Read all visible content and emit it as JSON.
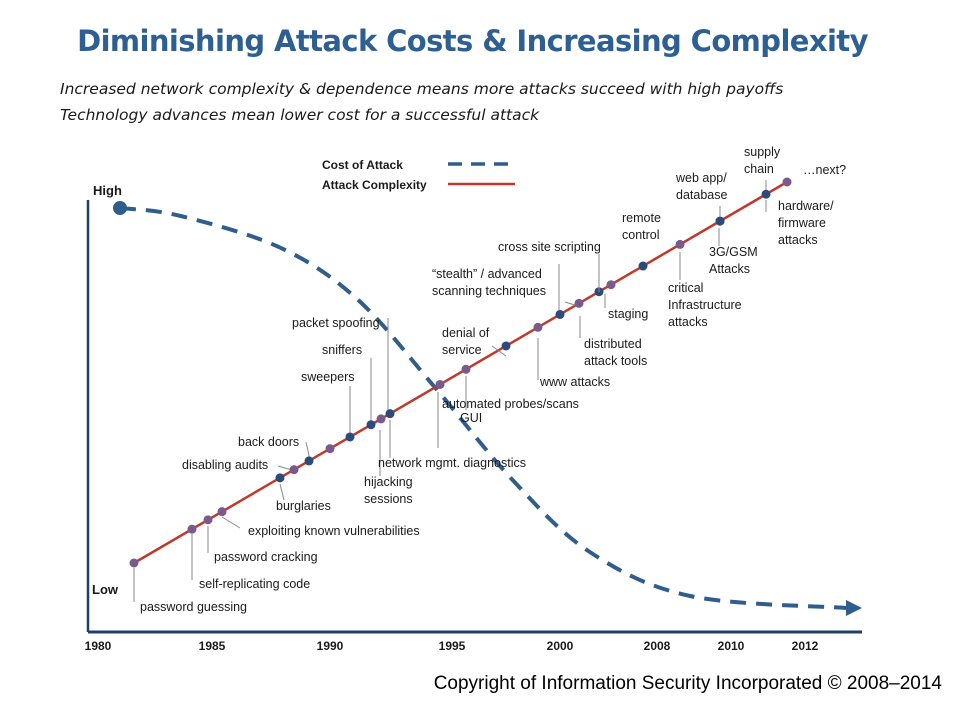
{
  "page": {
    "title": "Diminishing Attack Costs & Increasing Complexity",
    "subtitle_lines": [
      "Increased network complexity & dependence means more attacks succeed with high  payoffs",
      "Technology advances mean lower cost for a successful attack"
    ],
    "copyright": "Copyright of Information Security Incorporated © 2008–2014"
  },
  "colors": {
    "cost_line": "#2f5d8c",
    "complexity_line": "#c0392b",
    "dot_blue": "#2c4a7a",
    "dot_purple": "#7a5a8c",
    "axis": "#1f3f66",
    "title": "#2e5f93"
  },
  "chart_data": {
    "type": "line",
    "x_axis": {
      "tick_labels": [
        "1980",
        "1985",
        "1990",
        "1995",
        "2000",
        "2008",
        "2010",
        "2012"
      ]
    },
    "y_axis": {
      "tick_labels": [
        "High",
        "Low"
      ]
    },
    "legend": {
      "placement": "top",
      "entries": [
        {
          "name": "Cost of Attack",
          "style": "dashed",
          "color": "#2f5d8c"
        },
        {
          "name": "Attack Complexity",
          "style": "solid",
          "color": "#c0392b"
        }
      ]
    },
    "series": [
      {
        "name": "Cost of Attack",
        "style": "dashed",
        "description_points": [
          {
            "x": 0.0,
            "y": 1.0
          },
          {
            "x": 0.12,
            "y": 0.98
          },
          {
            "x": 0.25,
            "y": 0.9
          },
          {
            "x": 0.35,
            "y": 0.77
          },
          {
            "x": 0.45,
            "y": 0.55
          },
          {
            "x": 0.55,
            "y": 0.32
          },
          {
            "x": 0.65,
            "y": 0.14
          },
          {
            "x": 0.78,
            "y": 0.03
          },
          {
            "x": 1.0,
            "y": 0.0
          }
        ]
      },
      {
        "name": "Attack Complexity",
        "style": "solid",
        "description_points": [
          {
            "x": 0.02,
            "y": 0.07
          },
          {
            "x": 1.0,
            "y": 1.0
          }
        ]
      }
    ],
    "annotations": [
      {
        "text": [
          "password guessing"
        ],
        "t": 0.0,
        "color": "purple"
      },
      {
        "text": [
          "self-replicating code"
        ],
        "t": 0.09,
        "color": "purple"
      },
      {
        "text": [
          "password cracking"
        ],
        "t": 0.115,
        "color": "purple"
      },
      {
        "text": [
          "exploiting known vulnerabilities"
        ],
        "t": 0.14,
        "color": "purple"
      },
      {
        "text": [
          "burglaries"
        ],
        "t": 0.225,
        "color": "blue"
      },
      {
        "text": [
          "disabling audits"
        ],
        "t": 0.25,
        "color": "purple"
      },
      {
        "text": [
          "back doors"
        ],
        "t": 0.275,
        "color": "blue"
      },
      {
        "text": [
          "sweepers"
        ],
        "t": 0.31,
        "color": "purple"
      },
      {
        "text": [
          "sniffers"
        ],
        "t": 0.345,
        "color": "blue"
      },
      {
        "text": [
          "hijacking",
          "sessions"
        ],
        "t": 0.375,
        "color": "blue"
      },
      {
        "text": [
          "packet spoofing"
        ],
        "t": 0.395,
        "color": "purple"
      },
      {
        "text": [
          "network mgmt. diagnostics"
        ],
        "t": 0.41,
        "color": "blue"
      },
      {
        "text": [
          "automated probes/scans"
        ],
        "t": 0.49,
        "color": "purple"
      },
      {
        "text": [
          "GUI"
        ],
        "t": 0.525,
        "color": "purple"
      },
      {
        "text": [
          "denial of",
          "service"
        ],
        "t": 0.6,
        "color": "blue"
      },
      {
        "text": [
          "www attacks"
        ],
        "t": 0.645,
        "color": "purple"
      },
      {
        "text": [
          "cross site scripting"
        ],
        "t": 0.67,
        "color": "blue"
      },
      {
        "text": [
          "“stealth” / advanced",
          "scanning techniques"
        ],
        "t": 0.695,
        "color": "purple"
      },
      {
        "text": [
          "distributed",
          "attack tools"
        ],
        "t": 0.73,
        "color": "blue"
      },
      {
        "text": [
          "staging"
        ],
        "t": 0.765,
        "color": "purple"
      },
      {
        "text": [
          "remote",
          "control"
        ],
        "t": 0.8,
        "color": "blue"
      },
      {
        "text": [
          "critical",
          "Infrastructure",
          "attacks"
        ],
        "t": 0.855,
        "color": "purple"
      },
      {
        "text": [
          "3G/GSM",
          "Attacks"
        ],
        "t": 0.925,
        "color": "blue"
      },
      {
        "text": [
          "web app/",
          "database"
        ],
        "t": 0.95,
        "color": "blue"
      },
      {
        "text": [
          "supply",
          "chain"
        ],
        "t": 0.975,
        "color": "blue"
      },
      {
        "text": [
          "hardware/",
          "firmware",
          "attacks"
        ],
        "t": 0.985,
        "color": "blue"
      },
      {
        "text": [
          "…next?"
        ],
        "t": 1.0,
        "color": "purple"
      }
    ]
  }
}
